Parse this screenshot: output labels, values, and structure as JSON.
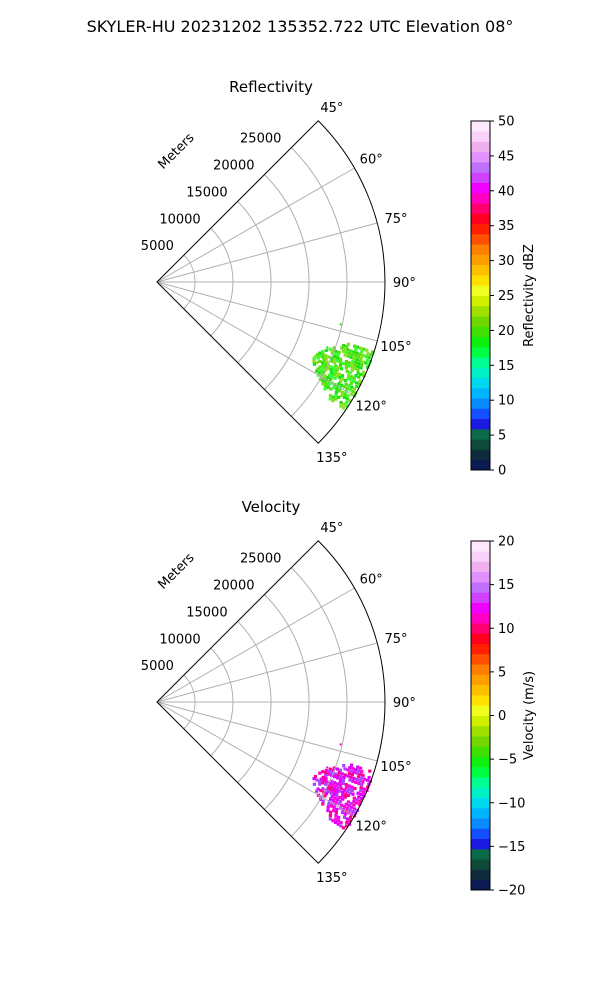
{
  "figure_title": "SKYLER-HU  20231202  135352.722 UTC Elevation 08°",
  "chart_data": [
    {
      "type": "polar-sector",
      "title": "Reflectivity",
      "radial_label": "Meters",
      "theta_range_deg": [
        45,
        135
      ],
      "theta_ticks": [
        "45°",
        "60°",
        "75°",
        "90°",
        "105°",
        "120°",
        "135°"
      ],
      "theta_tick_values": [
        45,
        60,
        75,
        90,
        105,
        120,
        135
      ],
      "r_max": 30000,
      "r_ticks": [
        "5000",
        "10000",
        "15000",
        "20000",
        "25000"
      ],
      "r_tick_values": [
        5000,
        10000,
        15000,
        20000,
        25000
      ],
      "colorbar": {
        "label": "Reflectivity dBZ",
        "range": [
          0,
          50
        ],
        "ticks": [
          "0",
          "5",
          "10",
          "15",
          "20",
          "25",
          "30",
          "35",
          "40",
          "45",
          "50"
        ],
        "colors": [
          "#0b1a52",
          "#0d2b3a",
          "#0d4a3a",
          "#0a6a4a",
          "#1a1ae0",
          "#1550ff",
          "#0a8aff",
          "#00b4ff",
          "#00d8f0",
          "#00f0c8",
          "#00ff90",
          "#00ff40",
          "#10f010",
          "#40e000",
          "#70d800",
          "#a0e000",
          "#d0f000",
          "#f0ff20",
          "#ffe000",
          "#ffc000",
          "#ffa000",
          "#ff8000",
          "#ff5000",
          "#ff2000",
          "#ff0020",
          "#ff0070",
          "#ff00c0",
          "#f000ff",
          "#d040ff",
          "#c070ff",
          "#e090ff",
          "#f0b0f0",
          "#f8d0f8",
          "#fde8fd"
        ]
      },
      "echo": {
        "theta_deg": [
          108,
          124
        ],
        "r_m": [
          23000,
          30000
        ],
        "colors": [
          "#22e010",
          "#55e010",
          "#8ae020",
          "#33ff33"
        ]
      }
    },
    {
      "type": "polar-sector",
      "title": "Velocity",
      "radial_label": "Meters",
      "theta_range_deg": [
        45,
        135
      ],
      "theta_ticks": [
        "45°",
        "60°",
        "75°",
        "90°",
        "105°",
        "120°",
        "135°"
      ],
      "theta_tick_values": [
        45,
        60,
        75,
        90,
        105,
        120,
        135
      ],
      "r_max": 30000,
      "r_ticks": [
        "5000",
        "10000",
        "15000",
        "20000",
        "25000"
      ],
      "r_tick_values": [
        5000,
        10000,
        15000,
        20000,
        25000
      ],
      "colorbar": {
        "label": "Velocity (m/s)",
        "range": [
          -20,
          20
        ],
        "ticks": [
          "−20",
          "−15",
          "−10",
          "−5",
          "0",
          "5",
          "10",
          "15",
          "20"
        ],
        "colors": [
          "#0b1a52",
          "#0d2b3a",
          "#0d4a3a",
          "#0a6a4a",
          "#1a1ae0",
          "#1550ff",
          "#0a8aff",
          "#00b4ff",
          "#00d8f0",
          "#00f0c8",
          "#00ff90",
          "#00ff40",
          "#10f010",
          "#40e000",
          "#70d800",
          "#a0e000",
          "#d0f000",
          "#f0ff20",
          "#ffe000",
          "#ffc000",
          "#ffa000",
          "#ff8000",
          "#ff5000",
          "#ff2000",
          "#ff0020",
          "#ff0070",
          "#ff00c0",
          "#f000ff",
          "#d040ff",
          "#c070ff",
          "#e090ff",
          "#f0b0f0",
          "#f8d0f8",
          "#fde8fd"
        ]
      },
      "echo": {
        "theta_deg": [
          108,
          124
        ],
        "r_m": [
          23000,
          30000
        ],
        "colors": [
          "#ff00e0",
          "#e000ff",
          "#b040ff",
          "#ff0090"
        ]
      }
    }
  ]
}
